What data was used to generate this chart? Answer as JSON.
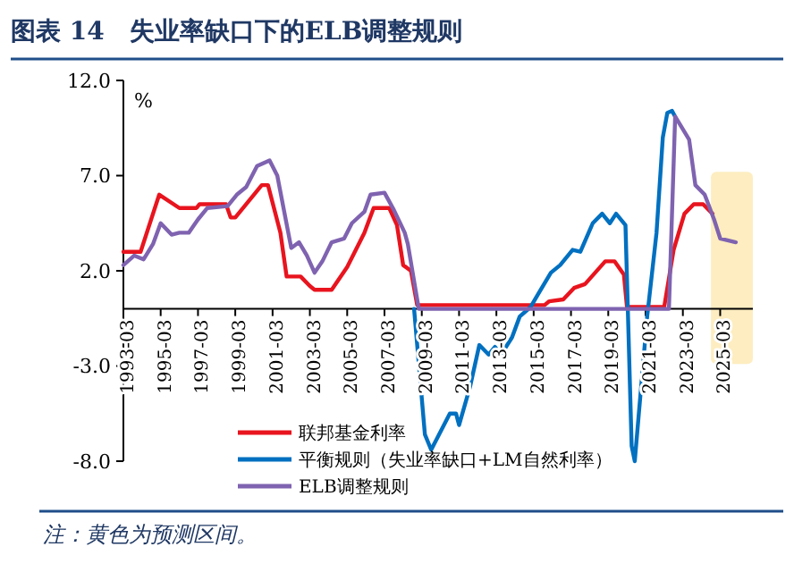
{
  "chart_data": {
    "type": "line",
    "title": "图表 14　失业率缺口下的ELB调整规则",
    "ylabel": "%",
    "annotations": [
      "注：黄色为预测区间。"
    ],
    "xlim": [
      "1993-03",
      "2026-12"
    ],
    "xticks": [
      "1993-03",
      "1995-03",
      "1997-03",
      "1999-03",
      "2001-03",
      "2003-03",
      "2005-03",
      "2007-03",
      "2009-03",
      "2011-03",
      "2013-03",
      "2015-03",
      "2017-03",
      "2019-03",
      "2021-03",
      "2023-03",
      "2025-03"
    ],
    "ylim": [
      -8,
      12
    ],
    "yticks": [
      {
        "value": -8,
        "label": "-8.0"
      },
      {
        "value": -3,
        "label": "-3.0"
      },
      {
        "value": 2,
        "label": "2.0"
      },
      {
        "value": 7,
        "label": "7.0"
      },
      {
        "value": 12,
        "label": "12.0"
      }
    ],
    "grid": false,
    "legend": "bottom",
    "marker": "none",
    "line_style": "solid",
    "bands": [
      {
        "axis": "x",
        "from": "2024-09",
        "to": "2026-12",
        "color": "#fdeab5"
      }
    ],
    "series": [
      {
        "name": "联邦基金利率",
        "color": "#e8141e",
        "x": [
          "1993-03",
          "1994-02",
          "1995-02",
          "1996-03",
          "1997-02",
          "1997-04",
          "1998-09",
          "1998-12",
          "1999-03",
          "2000-08",
          "2000-12",
          "2001-08",
          "2001-12",
          "2002-09",
          "2003-03",
          "2003-06",
          "2004-05",
          "2005-03",
          "2006-02",
          "2006-08",
          "2007-06",
          "2007-11",
          "2008-03",
          "2008-08",
          "2008-12",
          "2015-10",
          "2016-01",
          "2016-10",
          "2017-05",
          "2017-12",
          "2019-01",
          "2019-07",
          "2020-01",
          "2020-03",
          "2022-03",
          "2022-09",
          "2023-04",
          "2023-10",
          "2024-04",
          "2024-10"
        ],
        "values": [
          3.0,
          3.0,
          6.0,
          5.3,
          5.3,
          5.5,
          5.5,
          4.8,
          4.8,
          6.5,
          6.5,
          4.0,
          1.7,
          1.7,
          1.2,
          1.0,
          1.0,
          2.2,
          4.0,
          5.3,
          5.3,
          4.4,
          2.3,
          2.0,
          0.2,
          0.2,
          0.4,
          0.5,
          1.1,
          1.3,
          2.5,
          2.5,
          1.8,
          0.1,
          0.1,
          3.1,
          5.0,
          5.5,
          5.5,
          5.0
        ]
      },
      {
        "name": "平衡规则（失业率缺口+LM自然利率）",
        "color": "#0070c0",
        "x": [
          "2008-10",
          "2009-05",
          "2009-09",
          "2010-09",
          "2011-01",
          "2011-03",
          "2011-10",
          "2012-04",
          "2012-10",
          "2013-02",
          "2013-06",
          "2014-01",
          "2014-06",
          "2015-01",
          "2015-06",
          "2016-02",
          "2016-08",
          "2017-04",
          "2017-09",
          "2018-05",
          "2018-11",
          "2019-04",
          "2019-08",
          "2020-02",
          "2020-06",
          "2020-08",
          "2021-04",
          "2021-10",
          "2022-02",
          "2022-05",
          "2022-08",
          "2022-10"
        ],
        "values": [
          0.0,
          -6.6,
          -7.4,
          -5.5,
          -5.5,
          -6.1,
          -4.1,
          -1.9,
          -2.4,
          -2.0,
          -2.4,
          -1.5,
          -0.4,
          0.1,
          0.8,
          1.9,
          2.3,
          3.1,
          3.0,
          4.5,
          5.0,
          4.5,
          5.0,
          4.4,
          -7.2,
          -8.0,
          -0.4,
          4.0,
          9.0,
          10.3,
          10.4,
          10.1
        ]
      },
      {
        "name": "ELB调整规则",
        "color": "#7f63b0",
        "x": [
          "1993-03",
          "1993-10",
          "1994-04",
          "1994-10",
          "1995-03",
          "1995-10",
          "1996-03",
          "1996-09",
          "1997-03",
          "1997-09",
          "1998-10",
          "1999-04",
          "1999-10",
          "2000-05",
          "2001-01",
          "2001-06",
          "2001-10",
          "2002-03",
          "2002-08",
          "2003-01",
          "2003-06",
          "2003-11",
          "2004-05",
          "2005-01",
          "2005-06",
          "2006-02",
          "2006-06",
          "2007-03",
          "2007-09",
          "2008-04",
          "2008-06",
          "2009-01",
          "2022-06",
          "2022-10",
          "2023-07",
          "2023-11",
          "2024-05",
          "2024-11",
          "2025-03",
          "2026-01"
        ],
        "values": [
          2.3,
          2.8,
          2.6,
          3.4,
          4.5,
          3.9,
          4.0,
          4.0,
          4.7,
          5.3,
          5.4,
          6.0,
          6.4,
          7.5,
          7.8,
          7.0,
          5.3,
          3.2,
          3.5,
          2.8,
          1.9,
          2.5,
          3.5,
          3.7,
          4.5,
          5.1,
          6.0,
          6.1,
          5.2,
          4.0,
          3.4,
          0.0,
          0.0,
          10.1,
          8.9,
          6.5,
          6.0,
          4.7,
          3.7,
          3.5
        ]
      }
    ]
  }
}
